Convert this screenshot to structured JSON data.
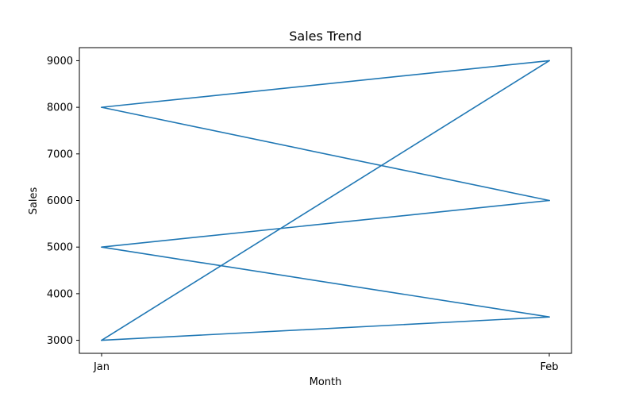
{
  "chart_data": {
    "type": "line",
    "title": "Sales Trend",
    "xlabel": "Month",
    "ylabel": "Sales",
    "categories": [
      "Jan",
      "Feb"
    ],
    "y_ticks": [
      3000,
      4000,
      5000,
      6000,
      7000,
      8000,
      9000
    ],
    "ylim": [
      2720,
      9280
    ],
    "grid": false,
    "line_color": "#1f77b4",
    "points": [
      {
        "x": "Jan",
        "y": 3000
      },
      {
        "x": "Feb",
        "y": 3500
      },
      {
        "x": "Jan",
        "y": 5000
      },
      {
        "x": "Feb",
        "y": 6000
      },
      {
        "x": "Jan",
        "y": 8000
      },
      {
        "x": "Feb",
        "y": 9000
      },
      {
        "x": "Jan",
        "y": 3000
      },
      {
        "x": "Feb",
        "y": 9000
      },
      {
        "x": "Jan",
        "y": 8000
      },
      {
        "x": "Feb",
        "y": 6000
      }
    ]
  }
}
